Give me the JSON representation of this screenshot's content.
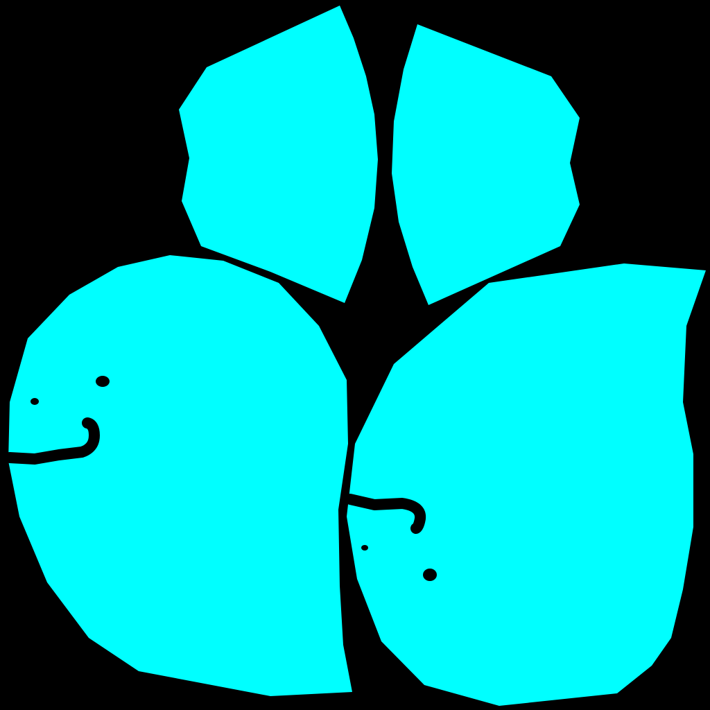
{
  "scene": {
    "background_color": "#000000",
    "shape_color": "#00FFFF",
    "feature_color": "#000000",
    "pieces": [
      {
        "name": "upper-left-petal",
        "has_face": false
      },
      {
        "name": "upper-right-petal",
        "has_face": false
      },
      {
        "name": "lower-left-blob",
        "has_face": true
      },
      {
        "name": "lower-right-blob",
        "has_face": true
      }
    ]
  }
}
